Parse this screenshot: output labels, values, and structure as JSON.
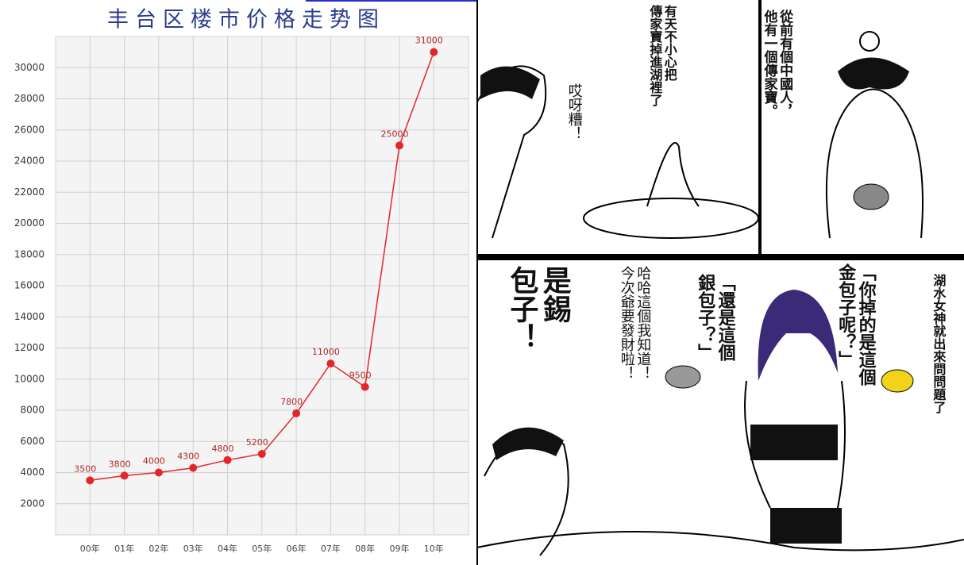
{
  "chart_data": {
    "type": "line",
    "title": "丰台区楼市价格走势图",
    "categories": [
      "00年",
      "01年",
      "02年",
      "03年",
      "04年",
      "05年",
      "06年",
      "07年",
      "08年",
      "09年",
      "10年"
    ],
    "values": [
      3500,
      3800,
      4000,
      4300,
      4800,
      5200,
      7800,
      11000,
      9500,
      25000,
      31000
    ],
    "color": "#e3262b",
    "ylim": [
      0,
      32000
    ],
    "yticks": [
      2000,
      4000,
      6000,
      8000,
      10000,
      12000,
      14000,
      16000,
      18000,
      20000,
      22000,
      24000,
      26000,
      28000,
      30000
    ],
    "grid": true
  },
  "comic": {
    "texts": [
      {
        "lines": [
          "從前有個中國人，",
          "他有一個傳家寶。"
        ]
      },
      {
        "lines": [
          "有天不小心把",
          "傳家寶掉進湖裡了"
        ]
      },
      {
        "lines": [
          "哎呀糟！"
        ]
      },
      {
        "lines": [
          "湖水女神就出來問問題了"
        ]
      },
      {
        "lines": [
          "「你掉的是這個",
          "金包子呢？」"
        ]
      },
      {
        "lines": [
          "「還是這個",
          "銀包子？」"
        ]
      },
      {
        "lines": [
          "哈哈這個我知道！",
          "今次爺要發財啦！"
        ]
      },
      {
        "lines": [
          "是錫",
          "包子！"
        ]
      }
    ]
  }
}
